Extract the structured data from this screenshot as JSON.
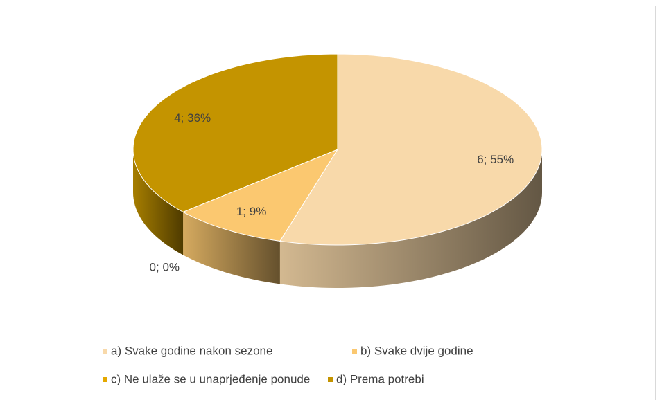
{
  "chart_data": {
    "type": "pie3d",
    "categories": [
      "a) Svake godine nakon sezone",
      "b) Svake dvije godine",
      "c) Ne ulaže se u unaprjeđenje ponude",
      "d) Prema potrebi"
    ],
    "values": [
      6,
      1,
      0,
      4
    ],
    "value_labels": [
      "6; 55%",
      "1; 9%",
      "0; 0%",
      "4; 36%"
    ],
    "colors": [
      "#f8d9aa",
      "#fbc870",
      "#e4a800",
      "#c49400"
    ],
    "legend": "bottom"
  }
}
